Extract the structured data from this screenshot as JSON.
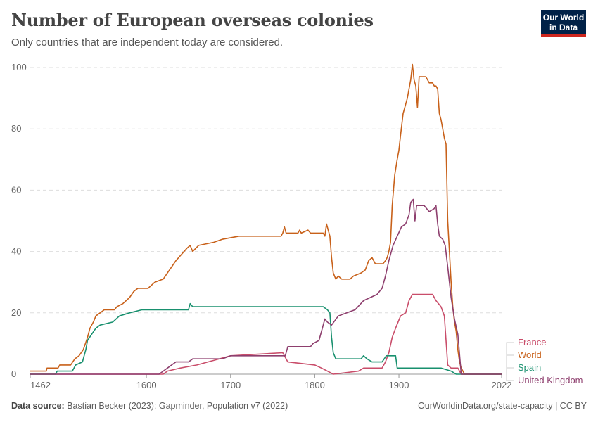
{
  "header": {
    "title": "Number of European overseas colonies",
    "subtitle": "Only countries that are independent today are considered.",
    "logo": "Our World in Data"
  },
  "footer": {
    "source_label": "Data source:",
    "source": "Bastian Becker (2023); Gapminder, Population v7 (2022)",
    "url": "OurWorldinData.org/state-capacity | CC BY"
  },
  "chart_data": {
    "type": "line",
    "title": "Number of European overseas colonies",
    "xlim": [
      1462,
      2022
    ],
    "ylim": [
      0,
      100
    ],
    "x_ticks": [
      "1462",
      "1600",
      "1700",
      "1800",
      "1900",
      "2022"
    ],
    "y_ticks": [
      "0",
      "20",
      "40",
      "60",
      "80",
      "100"
    ],
    "grid": "horizontal dashed",
    "legend": "right",
    "series": [
      {
        "name": "France",
        "color": "#c94d6a",
        "points": [
          [
            1462,
            0
          ],
          [
            1620,
            0
          ],
          [
            1625,
            1
          ],
          [
            1640,
            2
          ],
          [
            1660,
            3
          ],
          [
            1700,
            6
          ],
          [
            1762,
            7
          ],
          [
            1768,
            4
          ],
          [
            1800,
            3
          ],
          [
            1808,
            2
          ],
          [
            1815,
            1
          ],
          [
            1822,
            0
          ],
          [
            1852,
            1
          ],
          [
            1858,
            2
          ],
          [
            1880,
            2
          ],
          [
            1884,
            4
          ],
          [
            1888,
            7
          ],
          [
            1892,
            12
          ],
          [
            1896,
            15
          ],
          [
            1902,
            19
          ],
          [
            1908,
            20
          ],
          [
            1912,
            24
          ],
          [
            1916,
            26
          ],
          [
            1940,
            26
          ],
          [
            1944,
            24
          ],
          [
            1950,
            22
          ],
          [
            1954,
            19
          ],
          [
            1958,
            3
          ],
          [
            1962,
            2
          ],
          [
            1970,
            2
          ],
          [
            1974,
            0
          ],
          [
            2022,
            0
          ]
        ]
      },
      {
        "name": "World",
        "color": "#c8611a",
        "points": [
          [
            1462,
            1
          ],
          [
            1481,
            1
          ],
          [
            1482,
            2
          ],
          [
            1495,
            2
          ],
          [
            1497,
            3
          ],
          [
            1510,
            3
          ],
          [
            1515,
            5
          ],
          [
            1520,
            6
          ],
          [
            1525,
            8
          ],
          [
            1530,
            12
          ],
          [
            1533,
            15
          ],
          [
            1537,
            17
          ],
          [
            1540,
            19
          ],
          [
            1545,
            20
          ],
          [
            1550,
            21
          ],
          [
            1562,
            21
          ],
          [
            1565,
            22
          ],
          [
            1572,
            23
          ],
          [
            1580,
            25
          ],
          [
            1585,
            27
          ],
          [
            1590,
            28
          ],
          [
            1602,
            28
          ],
          [
            1610,
            30
          ],
          [
            1620,
            31
          ],
          [
            1625,
            33
          ],
          [
            1630,
            35
          ],
          [
            1635,
            37
          ],
          [
            1648,
            41
          ],
          [
            1652,
            42
          ],
          [
            1655,
            40
          ],
          [
            1662,
            42
          ],
          [
            1680,
            43
          ],
          [
            1690,
            44
          ],
          [
            1710,
            45
          ],
          [
            1760,
            45
          ],
          [
            1762,
            46
          ],
          [
            1764,
            48
          ],
          [
            1766,
            46
          ],
          [
            1780,
            46
          ],
          [
            1782,
            47
          ],
          [
            1784,
            46
          ],
          [
            1792,
            47
          ],
          [
            1795,
            46
          ],
          [
            1810,
            46
          ],
          [
            1812,
            45
          ],
          [
            1814,
            49
          ],
          [
            1816,
            47
          ],
          [
            1818,
            45
          ],
          [
            1820,
            38
          ],
          [
            1822,
            33
          ],
          [
            1825,
            31
          ],
          [
            1828,
            32
          ],
          [
            1832,
            31
          ],
          [
            1842,
            31
          ],
          [
            1846,
            32
          ],
          [
            1855,
            33
          ],
          [
            1860,
            34
          ],
          [
            1864,
            37
          ],
          [
            1868,
            38
          ],
          [
            1872,
            36
          ],
          [
            1881,
            36
          ],
          [
            1884,
            37
          ],
          [
            1886,
            38
          ],
          [
            1888,
            40
          ],
          [
            1890,
            43
          ],
          [
            1892,
            55
          ],
          [
            1895,
            65
          ],
          [
            1898,
            70
          ],
          [
            1900,
            73
          ],
          [
            1902,
            78
          ],
          [
            1905,
            85
          ],
          [
            1908,
            88
          ],
          [
            1910,
            90
          ],
          [
            1912,
            93
          ],
          [
            1914,
            96
          ],
          [
            1916,
            101
          ],
          [
            1918,
            96
          ],
          [
            1920,
            94
          ],
          [
            1922,
            87
          ],
          [
            1924,
            97
          ],
          [
            1932,
            97
          ],
          [
            1934,
            96
          ],
          [
            1936,
            95
          ],
          [
            1940,
            95
          ],
          [
            1942,
            94
          ],
          [
            1944,
            94
          ],
          [
            1946,
            93
          ],
          [
            1948,
            85
          ],
          [
            1950,
            83
          ],
          [
            1952,
            80
          ],
          [
            1954,
            77
          ],
          [
            1956,
            75
          ],
          [
            1958,
            50
          ],
          [
            1960,
            40
          ],
          [
            1962,
            30
          ],
          [
            1964,
            22
          ],
          [
            1966,
            17
          ],
          [
            1968,
            14
          ],
          [
            1970,
            8
          ],
          [
            1972,
            4
          ],
          [
            1974,
            2
          ],
          [
            1976,
            1
          ],
          [
            1978,
            0
          ],
          [
            2022,
            0
          ]
        ]
      },
      {
        "name": "Spain",
        "color": "#18906e",
        "points": [
          [
            1462,
            0
          ],
          [
            1492,
            0
          ],
          [
            1494,
            1
          ],
          [
            1512,
            1
          ],
          [
            1516,
            3
          ],
          [
            1524,
            4
          ],
          [
            1528,
            8
          ],
          [
            1530,
            11
          ],
          [
            1535,
            13
          ],
          [
            1540,
            15
          ],
          [
            1545,
            16
          ],
          [
            1560,
            17
          ],
          [
            1568,
            19
          ],
          [
            1580,
            20
          ],
          [
            1595,
            21
          ],
          [
            1650,
            21
          ],
          [
            1652,
            23
          ],
          [
            1655,
            22
          ],
          [
            1810,
            22
          ],
          [
            1815,
            21
          ],
          [
            1818,
            20
          ],
          [
            1820,
            12
          ],
          [
            1822,
            7
          ],
          [
            1825,
            5
          ],
          [
            1855,
            5
          ],
          [
            1858,
            6
          ],
          [
            1862,
            5
          ],
          [
            1868,
            4
          ],
          [
            1880,
            4
          ],
          [
            1885,
            6
          ],
          [
            1896,
            6
          ],
          [
            1898,
            2
          ],
          [
            1950,
            2
          ],
          [
            1962,
            1
          ],
          [
            1968,
            0
          ],
          [
            2022,
            0
          ]
        ]
      },
      {
        "name": "United Kingdom",
        "color": "#8e3f6e",
        "points": [
          [
            1462,
            0
          ],
          [
            1615,
            0
          ],
          [
            1620,
            1
          ],
          [
            1625,
            2
          ],
          [
            1630,
            3
          ],
          [
            1635,
            4
          ],
          [
            1650,
            4
          ],
          [
            1655,
            5
          ],
          [
            1690,
            5
          ],
          [
            1700,
            6
          ],
          [
            1765,
            6
          ],
          [
            1768,
            9
          ],
          [
            1795,
            9
          ],
          [
            1798,
            10
          ],
          [
            1805,
            11
          ],
          [
            1808,
            14
          ],
          [
            1812,
            18
          ],
          [
            1815,
            17
          ],
          [
            1820,
            16
          ],
          [
            1828,
            19
          ],
          [
            1838,
            20
          ],
          [
            1848,
            21
          ],
          [
            1858,
            24
          ],
          [
            1866,
            25
          ],
          [
            1874,
            26
          ],
          [
            1880,
            28
          ],
          [
            1884,
            32
          ],
          [
            1888,
            37
          ],
          [
            1893,
            42
          ],
          [
            1898,
            45
          ],
          [
            1903,
            48
          ],
          [
            1908,
            49
          ],
          [
            1912,
            52
          ],
          [
            1914,
            56
          ],
          [
            1917,
            57
          ],
          [
            1919,
            50
          ],
          [
            1921,
            55
          ],
          [
            1930,
            55
          ],
          [
            1933,
            54
          ],
          [
            1936,
            53
          ],
          [
            1942,
            54
          ],
          [
            1944,
            55
          ],
          [
            1946,
            49
          ],
          [
            1948,
            45
          ],
          [
            1952,
            44
          ],
          [
            1955,
            42
          ],
          [
            1958,
            35
          ],
          [
            1962,
            25
          ],
          [
            1966,
            18
          ],
          [
            1970,
            13
          ],
          [
            1974,
            0
          ],
          [
            2022,
            0
          ]
        ]
      }
    ]
  }
}
